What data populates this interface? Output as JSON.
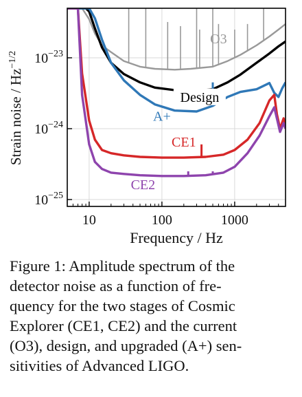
{
  "chart_data": {
    "type": "line",
    "xscale": "log",
    "yscale": "log",
    "xlim": [
      5,
      5000
    ],
    "ylim": [
      8e-26,
      5e-23
    ],
    "xlabel": "Frequency / Hz",
    "ylabel": "Strain noise / Hz",
    "ylabel_exponent": "−1/2",
    "x_ticks": [
      {
        "value": 10,
        "label": "10"
      },
      {
        "value": 100,
        "label": "100"
      },
      {
        "value": 1000,
        "label": "1000"
      }
    ],
    "y_ticks": [
      {
        "value": 1e-23,
        "base": "10",
        "exp": "−23"
      },
      {
        "value": 1e-24,
        "base": "10",
        "exp": "−24"
      },
      {
        "value": 1e-25,
        "base": "10",
        "exp": "−25"
      }
    ],
    "grid": true,
    "series": [
      {
        "name": "O3",
        "color": "#999999",
        "points": [
          [
            5,
            5e-23
          ],
          [
            8,
            5e-23
          ],
          [
            10,
            3.5e-23
          ],
          [
            12,
            2.2e-23
          ],
          [
            15,
            1.5e-23
          ],
          [
            20,
            1.2e-23
          ],
          [
            30,
            9e-24
          ],
          [
            50,
            7.5e-24
          ],
          [
            80,
            7e-24
          ],
          [
            150,
            6.8e-24
          ],
          [
            250,
            7e-24
          ],
          [
            500,
            7.5e-24
          ],
          [
            800,
            9e-24
          ],
          [
            1200,
            1.1e-23
          ],
          [
            2000,
            1.5e-23
          ],
          [
            3000,
            2e-23
          ],
          [
            4000,
            2.5e-23
          ],
          [
            5000,
            3e-23
          ]
        ],
        "peaks": [
          [
            35,
            5e-23
          ],
          [
            60,
            5e-23
          ],
          [
            120,
            3.2e-23
          ],
          [
            180,
            2.8e-23
          ],
          [
            300,
            5e-23
          ],
          [
            330,
            2.5e-23
          ],
          [
            500,
            5e-23
          ],
          [
            600,
            3e-23
          ],
          [
            1000,
            2.5e-23
          ],
          [
            1500,
            3e-23
          ],
          [
            2500,
            5e-23
          ]
        ]
      },
      {
        "name": "Design",
        "color": "#000000",
        "points": [
          [
            5,
            5e-23
          ],
          [
            9,
            5e-23
          ],
          [
            10,
            4.5e-23
          ],
          [
            12,
            2.6e-23
          ],
          [
            15,
            1.4e-23
          ],
          [
            20,
            8.5e-24
          ],
          [
            30,
            5.9e-24
          ],
          [
            50,
            4.5e-24
          ],
          [
            80,
            3.8e-24
          ],
          [
            150,
            3.5e-24
          ],
          [
            300,
            3.4e-24
          ],
          [
            500,
            3.6e-24
          ],
          [
            800,
            4.5e-24
          ],
          [
            1200,
            5.8e-24
          ],
          [
            2000,
            8.5e-24
          ],
          [
            3000,
            1.15e-23
          ],
          [
            4000,
            1.45e-23
          ],
          [
            5000,
            1.7e-23
          ]
        ],
        "peaks": [
          [
            500,
            2.7e-24
          ]
        ]
      },
      {
        "name": "A+",
        "color": "#2f78b7",
        "points": [
          [
            5,
            5e-23
          ],
          [
            9,
            5e-23
          ],
          [
            10,
            5e-23
          ],
          [
            12,
            3.6e-23
          ],
          [
            15,
            1.8e-23
          ],
          [
            20,
            8.5e-24
          ],
          [
            30,
            4.8e-24
          ],
          [
            50,
            3e-24
          ],
          [
            80,
            2.2e-24
          ],
          [
            150,
            1.8e-24
          ],
          [
            300,
            1.75e-24
          ],
          [
            500,
            2.1e-24
          ],
          [
            800,
            2.8e-24
          ],
          [
            1200,
            3.3e-24
          ],
          [
            2000,
            3.6e-24
          ],
          [
            3000,
            4.4e-24
          ],
          [
            3500,
            3.2e-24
          ],
          [
            4000,
            2.8e-24
          ],
          [
            4500,
            3.7e-24
          ],
          [
            5000,
            4.5e-24
          ]
        ],
        "peaks": [
          [
            500,
            4.5e-24
          ]
        ]
      },
      {
        "name": "CE1",
        "color": "#d62728",
        "points": [
          [
            5,
            5e-23
          ],
          [
            7,
            5e-23
          ],
          [
            8,
            6e-24
          ],
          [
            10,
            1.3e-24
          ],
          [
            12,
            7e-25
          ],
          [
            15,
            5e-25
          ],
          [
            20,
            4.5e-25
          ],
          [
            30,
            4.2e-25
          ],
          [
            50,
            4e-25
          ],
          [
            100,
            3.9e-25
          ],
          [
            200,
            3.9e-25
          ],
          [
            400,
            4e-25
          ],
          [
            700,
            4.3e-25
          ],
          [
            1000,
            5e-25
          ],
          [
            1500,
            7e-25
          ],
          [
            2200,
            1.2e-24
          ],
          [
            3000,
            2.5e-24
          ],
          [
            3500,
            3e-24
          ],
          [
            3800,
            1.6e-24
          ],
          [
            4200,
            1e-24
          ],
          [
            4700,
            1.4e-24
          ],
          [
            5000,
            1.1e-24
          ]
        ],
        "peaks": [
          [
            350,
            6e-25
          ]
        ]
      },
      {
        "name": "CE2",
        "color": "#8e44ad",
        "points": [
          [
            5,
            5e-23
          ],
          [
            7,
            5e-23
          ],
          [
            8,
            3e-24
          ],
          [
            10,
            6e-25
          ],
          [
            12,
            3.4e-25
          ],
          [
            15,
            2.7e-25
          ],
          [
            20,
            2.4e-25
          ],
          [
            30,
            2.3e-25
          ],
          [
            50,
            2.2e-25
          ],
          [
            100,
            2.15e-25
          ],
          [
            200,
            2.15e-25
          ],
          [
            400,
            2.2e-25
          ],
          [
            700,
            2.4e-25
          ],
          [
            1000,
            2.9e-25
          ],
          [
            1500,
            4.5e-25
          ],
          [
            2200,
            8e-25
          ],
          [
            3000,
            1.5e-24
          ],
          [
            3500,
            2e-24
          ],
          [
            3800,
            1.4e-24
          ],
          [
            4200,
            9e-25
          ],
          [
            4700,
            1.2e-24
          ],
          [
            5000,
            1e-24
          ]
        ],
        "peaks": [
          [
            230,
            2.5e-25
          ],
          [
            500,
            2.5e-25
          ]
        ]
      }
    ],
    "annotations": [
      {
        "text": "O3",
        "series": "O3",
        "x": 600,
        "y": 1.6e-23,
        "color": "#999999"
      },
      {
        "text": "Design",
        "series": "Design",
        "x": 330,
        "y": 2.4e-24,
        "color": "#000000"
      },
      {
        "text": "A+",
        "series": "A+",
        "x": 100,
        "y": 1.3e-24,
        "color": "#2f78b7"
      },
      {
        "text": "CE1",
        "series": "CE1",
        "x": 200,
        "y": 5.6e-25,
        "color": "#d62728"
      },
      {
        "text": "CE2",
        "series": "CE2",
        "x": 55,
        "y": 1.4e-25,
        "color": "#8e44ad"
      }
    ]
  },
  "caption": [
    "Figure 1:  Amplitude spectrum of the",
    "detector noise as a function of fre-",
    "quency for the two stages of Cosmic",
    "Explorer (CE1, CE2) and the current",
    "(O3), design, and upgraded (A+) sen-",
    "sitivities of Advanced LIGO."
  ]
}
